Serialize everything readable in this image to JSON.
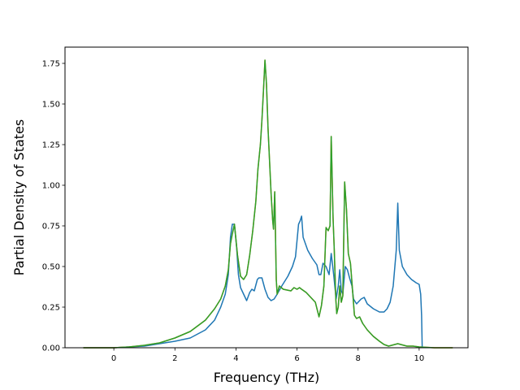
{
  "chart_data": {
    "type": "line",
    "title": "",
    "xlabel": "Frequency (THz)",
    "ylabel": "Partial Density of States",
    "xlim": [
      -1.6,
      11.6
    ],
    "ylim": [
      0,
      1.85
    ],
    "xticks": [
      0,
      2,
      4,
      6,
      8,
      10
    ],
    "yticks": [
      0.0,
      0.25,
      0.5,
      0.75,
      1.0,
      1.25,
      1.5,
      1.75
    ],
    "xtick_labels": [
      "0",
      "2",
      "4",
      "6",
      "8",
      "10"
    ],
    "ytick_labels": [
      "0.00",
      "0.25",
      "0.50",
      "0.75",
      "1.00",
      "1.25",
      "1.50",
      "1.75"
    ],
    "grid": false,
    "legend": "none",
    "series": [
      {
        "color": "#1f77b4",
        "points": [
          [
            -1.0,
            0.0
          ],
          [
            -0.5,
            0.0
          ],
          [
            0.0,
            0.0
          ],
          [
            0.5,
            0.005
          ],
          [
            1.0,
            0.01
          ],
          [
            1.5,
            0.025
          ],
          [
            2.0,
            0.04
          ],
          [
            2.5,
            0.06
          ],
          [
            3.0,
            0.11
          ],
          [
            3.3,
            0.17
          ],
          [
            3.5,
            0.25
          ],
          [
            3.65,
            0.33
          ],
          [
            3.75,
            0.45
          ],
          [
            3.82,
            0.68
          ],
          [
            3.88,
            0.76
          ],
          [
            3.95,
            0.76
          ],
          [
            4.02,
            0.62
          ],
          [
            4.08,
            0.45
          ],
          [
            4.15,
            0.37
          ],
          [
            4.25,
            0.33
          ],
          [
            4.35,
            0.29
          ],
          [
            4.45,
            0.34
          ],
          [
            4.52,
            0.36
          ],
          [
            4.6,
            0.35
          ],
          [
            4.7,
            0.42
          ],
          [
            4.75,
            0.43
          ],
          [
            4.85,
            0.43
          ],
          [
            4.95,
            0.36
          ],
          [
            5.05,
            0.31
          ],
          [
            5.15,
            0.29
          ],
          [
            5.25,
            0.3
          ],
          [
            5.35,
            0.33
          ],
          [
            5.5,
            0.38
          ],
          [
            5.7,
            0.44
          ],
          [
            5.85,
            0.5
          ],
          [
            5.95,
            0.56
          ],
          [
            6.0,
            0.66
          ],
          [
            6.05,
            0.76
          ],
          [
            6.1,
            0.78
          ],
          [
            6.15,
            0.81
          ],
          [
            6.2,
            0.68
          ],
          [
            6.35,
            0.6
          ],
          [
            6.5,
            0.55
          ],
          [
            6.65,
            0.51
          ],
          [
            6.72,
            0.45
          ],
          [
            6.78,
            0.45
          ],
          [
            6.85,
            0.52
          ],
          [
            6.95,
            0.5
          ],
          [
            7.05,
            0.45
          ],
          [
            7.12,
            0.58
          ],
          [
            7.2,
            0.45
          ],
          [
            7.28,
            0.3
          ],
          [
            7.35,
            0.38
          ],
          [
            7.4,
            0.48
          ],
          [
            7.45,
            0.35
          ],
          [
            7.5,
            0.33
          ],
          [
            7.58,
            0.5
          ],
          [
            7.65,
            0.48
          ],
          [
            7.72,
            0.43
          ],
          [
            7.8,
            0.38
          ],
          [
            7.85,
            0.3
          ],
          [
            7.95,
            0.27
          ],
          [
            8.1,
            0.3
          ],
          [
            8.2,
            0.31
          ],
          [
            8.3,
            0.27
          ],
          [
            8.5,
            0.24
          ],
          [
            8.7,
            0.22
          ],
          [
            8.85,
            0.22
          ],
          [
            8.95,
            0.24
          ],
          [
            9.05,
            0.28
          ],
          [
            9.15,
            0.38
          ],
          [
            9.25,
            0.6
          ],
          [
            9.3,
            0.89
          ],
          [
            9.35,
            0.6
          ],
          [
            9.45,
            0.5
          ],
          [
            9.6,
            0.45
          ],
          [
            9.75,
            0.42
          ],
          [
            9.9,
            0.4
          ],
          [
            10.0,
            0.39
          ],
          [
            10.05,
            0.33
          ],
          [
            10.08,
            0.2
          ],
          [
            10.1,
            0.0
          ]
        ]
      },
      {
        "color": "#ff7f0e",
        "points": [
          [
            -1.0,
            0.0
          ],
          [
            -0.5,
            0.0
          ],
          [
            0.0,
            0.0
          ],
          [
            0.5,
            0.005
          ],
          [
            1.0,
            0.015
          ],
          [
            1.5,
            0.03
          ],
          [
            2.0,
            0.06
          ],
          [
            2.5,
            0.1
          ],
          [
            3.0,
            0.17
          ],
          [
            3.3,
            0.24
          ],
          [
            3.5,
            0.3
          ],
          [
            3.65,
            0.38
          ],
          [
            3.75,
            0.48
          ],
          [
            3.82,
            0.64
          ],
          [
            3.88,
            0.7
          ],
          [
            3.95,
            0.76
          ],
          [
            4.05,
            0.57
          ],
          [
            4.15,
            0.44
          ],
          [
            4.25,
            0.42
          ],
          [
            4.35,
            0.45
          ],
          [
            4.45,
            0.57
          ],
          [
            4.55,
            0.72
          ],
          [
            4.65,
            0.9
          ],
          [
            4.72,
            1.1
          ],
          [
            4.8,
            1.25
          ],
          [
            4.85,
            1.4
          ],
          [
            4.9,
            1.58
          ],
          [
            4.95,
            1.77
          ],
          [
            5.0,
            1.62
          ],
          [
            5.05,
            1.35
          ],
          [
            5.1,
            1.15
          ],
          [
            5.15,
            0.95
          ],
          [
            5.2,
            0.79
          ],
          [
            5.23,
            0.73
          ],
          [
            5.27,
            0.96
          ],
          [
            5.32,
            0.42
          ],
          [
            5.35,
            0.33
          ],
          [
            5.42,
            0.38
          ],
          [
            5.55,
            0.36
          ],
          [
            5.8,
            0.35
          ],
          [
            5.9,
            0.37
          ],
          [
            6.0,
            0.36
          ],
          [
            6.08,
            0.37
          ],
          [
            6.15,
            0.36
          ],
          [
            6.3,
            0.34
          ],
          [
            6.45,
            0.31
          ],
          [
            6.6,
            0.28
          ],
          [
            6.68,
            0.22
          ],
          [
            6.72,
            0.19
          ],
          [
            6.8,
            0.26
          ],
          [
            6.88,
            0.38
          ],
          [
            6.95,
            0.74
          ],
          [
            7.02,
            0.72
          ],
          [
            7.08,
            0.75
          ],
          [
            7.12,
            1.3
          ],
          [
            7.18,
            0.8
          ],
          [
            7.22,
            0.6
          ],
          [
            7.27,
            0.3
          ],
          [
            7.3,
            0.21
          ],
          [
            7.35,
            0.25
          ],
          [
            7.4,
            0.38
          ],
          [
            7.45,
            0.28
          ],
          [
            7.5,
            0.32
          ],
          [
            7.56,
            1.02
          ],
          [
            7.62,
            0.85
          ],
          [
            7.68,
            0.58
          ],
          [
            7.75,
            0.52
          ],
          [
            7.8,
            0.4
          ],
          [
            7.88,
            0.2
          ],
          [
            7.95,
            0.18
          ],
          [
            8.05,
            0.19
          ],
          [
            8.15,
            0.15
          ],
          [
            8.3,
            0.11
          ],
          [
            8.5,
            0.07
          ],
          [
            8.7,
            0.04
          ],
          [
            8.85,
            0.02
          ],
          [
            9.0,
            0.01
          ],
          [
            9.2,
            0.02
          ],
          [
            9.3,
            0.025
          ],
          [
            9.4,
            0.02
          ],
          [
            9.6,
            0.01
          ],
          [
            9.8,
            0.01
          ],
          [
            10.0,
            0.005
          ],
          [
            10.5,
            0.0
          ],
          [
            11.0,
            0.0
          ],
          [
            11.1,
            0.0
          ]
        ]
      },
      {
        "color": "#2ca02c",
        "points": [
          [
            -1.0,
            0.0
          ],
          [
            -0.5,
            0.0
          ],
          [
            0.0,
            0.0
          ],
          [
            0.5,
            0.005
          ],
          [
            1.0,
            0.015
          ],
          [
            1.5,
            0.03
          ],
          [
            2.0,
            0.06
          ],
          [
            2.5,
            0.1
          ],
          [
            3.0,
            0.17
          ],
          [
            3.3,
            0.24
          ],
          [
            3.5,
            0.3
          ],
          [
            3.65,
            0.38
          ],
          [
            3.75,
            0.48
          ],
          [
            3.82,
            0.64
          ],
          [
            3.88,
            0.7
          ],
          [
            3.95,
            0.76
          ],
          [
            4.05,
            0.57
          ],
          [
            4.15,
            0.44
          ],
          [
            4.25,
            0.42
          ],
          [
            4.35,
            0.45
          ],
          [
            4.45,
            0.57
          ],
          [
            4.55,
            0.72
          ],
          [
            4.65,
            0.9
          ],
          [
            4.72,
            1.1
          ],
          [
            4.8,
            1.25
          ],
          [
            4.85,
            1.4
          ],
          [
            4.9,
            1.58
          ],
          [
            4.95,
            1.77
          ],
          [
            5.0,
            1.62
          ],
          [
            5.05,
            1.35
          ],
          [
            5.1,
            1.15
          ],
          [
            5.15,
            0.95
          ],
          [
            5.2,
            0.79
          ],
          [
            5.23,
            0.73
          ],
          [
            5.27,
            0.96
          ],
          [
            5.32,
            0.42
          ],
          [
            5.35,
            0.33
          ],
          [
            5.42,
            0.38
          ],
          [
            5.55,
            0.36
          ],
          [
            5.8,
            0.35
          ],
          [
            5.9,
            0.37
          ],
          [
            6.0,
            0.36
          ],
          [
            6.08,
            0.37
          ],
          [
            6.15,
            0.36
          ],
          [
            6.3,
            0.34
          ],
          [
            6.45,
            0.31
          ],
          [
            6.6,
            0.28
          ],
          [
            6.68,
            0.22
          ],
          [
            6.72,
            0.19
          ],
          [
            6.8,
            0.26
          ],
          [
            6.88,
            0.38
          ],
          [
            6.95,
            0.74
          ],
          [
            7.02,
            0.72
          ],
          [
            7.08,
            0.75
          ],
          [
            7.12,
            1.3
          ],
          [
            7.18,
            0.8
          ],
          [
            7.22,
            0.6
          ],
          [
            7.27,
            0.3
          ],
          [
            7.3,
            0.21
          ],
          [
            7.35,
            0.25
          ],
          [
            7.4,
            0.38
          ],
          [
            7.45,
            0.28
          ],
          [
            7.5,
            0.32
          ],
          [
            7.56,
            1.02
          ],
          [
            7.62,
            0.85
          ],
          [
            7.68,
            0.58
          ],
          [
            7.75,
            0.52
          ],
          [
            7.8,
            0.4
          ],
          [
            7.88,
            0.2
          ],
          [
            7.95,
            0.18
          ],
          [
            8.05,
            0.19
          ],
          [
            8.15,
            0.15
          ],
          [
            8.3,
            0.11
          ],
          [
            8.5,
            0.07
          ],
          [
            8.7,
            0.04
          ],
          [
            8.85,
            0.02
          ],
          [
            9.0,
            0.01
          ],
          [
            9.2,
            0.02
          ],
          [
            9.3,
            0.025
          ],
          [
            9.4,
            0.02
          ],
          [
            9.6,
            0.01
          ],
          [
            9.8,
            0.01
          ],
          [
            10.0,
            0.005
          ],
          [
            10.5,
            0.0
          ],
          [
            11.0,
            0.0
          ],
          [
            11.1,
            0.0
          ]
        ]
      }
    ]
  }
}
